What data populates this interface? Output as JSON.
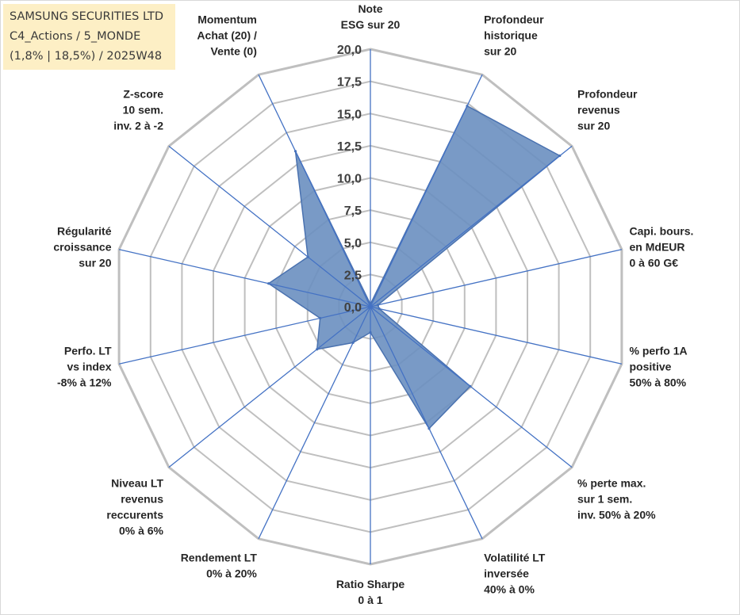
{
  "title_box": {
    "line1": "SAMSUNG SECURITIES LTD",
    "line2": "C4_Actions / 5_MONDE",
    "line3": "(1,8% | 18,5%) / 2025W48"
  },
  "chart_data": {
    "type": "radar",
    "title": "SAMSUNG SECURITIES LTD",
    "rmin": 0,
    "rmax": 20,
    "tick_step": 2.5,
    "tick_labels": [
      "0,0",
      "2,5",
      "5,0",
      "7,5",
      "10,0",
      "12,5",
      "15,0",
      "17,5",
      "20,0"
    ],
    "colors": {
      "fill": "#6a8fc0",
      "stroke": "#4a72b0",
      "spoke": "#4472c4",
      "grid": "#bfbfbf"
    },
    "axes": [
      [
        "Note",
        "ESG sur 20"
      ],
      [
        "Profondeur",
        "historique",
        "sur 20"
      ],
      [
        "Profondeur",
        "revenus",
        "sur 20"
      ],
      [
        "Capi. bours.",
        "en MdEUR",
        "0 à 60 G€"
      ],
      [
        "% perfo 1A",
        "positive",
        "50% à 80%"
      ],
      [
        "% perte max.",
        "sur 1 sem.",
        "inv. 50% à 20%"
      ],
      [
        "Volatilité LT",
        "inversée",
        "40% à 0%"
      ],
      [
        "Ratio Sharpe",
        "0 à 1"
      ],
      [
        "Rendement LT",
        "0% à 20%"
      ],
      [
        "Niveau LT",
        "revenus",
        "reccurents",
        "0% à 6%"
      ],
      [
        "Perfo. LT",
        "vs index",
        "-8% à 12%"
      ],
      [
        "Régularité",
        "croissance",
        "sur 20"
      ],
      [
        "Z-score",
        "10 sem.",
        "inv. 2 à -2"
      ],
      [
        "Momentum",
        "Achat (20) /",
        "Vente (0)"
      ]
    ],
    "values": [
      0.2,
      17.3,
      18.8,
      0.6,
      0.7,
      9.9,
      10.5,
      2.0,
      3.1,
      5.3,
      4.0,
      8.1,
      6.2,
      13.4
    ]
  }
}
